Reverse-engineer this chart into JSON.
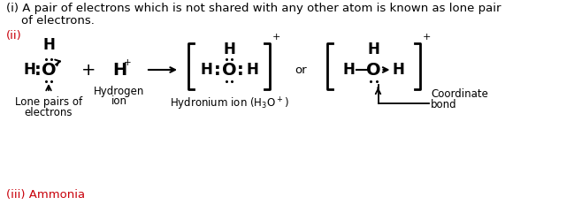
{
  "bg_color": "#ffffff",
  "text_color": "#000000",
  "red_color": "#c8000a",
  "line1": "(i) A pair of electrons which is not shared with any other atom is known as lone pair",
  "line2": "    of electrons.",
  "roman_ii": "(ii)",
  "roman_iii": "(iii) Ammonia",
  "figsize": [
    6.49,
    2.49
  ],
  "dpi": 100
}
